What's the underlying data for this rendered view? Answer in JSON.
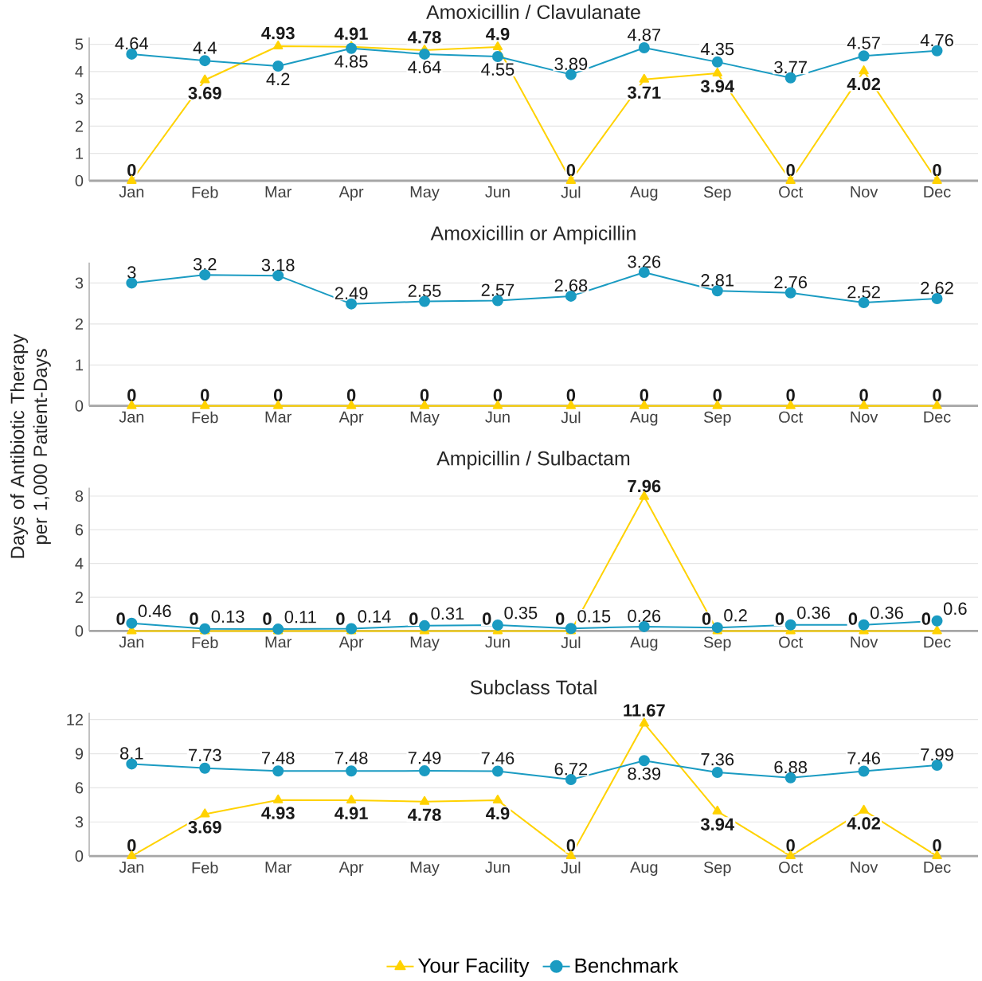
{
  "chart_data": [
    {
      "type": "line",
      "title": "Amoxicillin / Clavulanate",
      "categories": [
        "Jan",
        "Feb",
        "Mar",
        "Apr",
        "May",
        "Jun",
        "Jul",
        "Aug",
        "Sep",
        "Oct",
        "Nov",
        "Dec"
      ],
      "series": [
        {
          "color": "#ffd200",
          "marker": "triangle",
          "values": [
            0,
            3.69,
            4.93,
            4.91,
            4.78,
            4.9,
            0,
            3.71,
            3.94,
            0,
            4.02,
            0
          ]
        },
        {
          "color": "#1a9bc2",
          "marker": "circle",
          "values": [
            4.64,
            4.4,
            4.2,
            4.85,
            4.64,
            4.55,
            3.89,
            4.87,
            4.35,
            3.77,
            4.57,
            4.76
          ]
        }
      ],
      "ylim": [
        0,
        5.25
      ],
      "yticks": [
        0,
        1,
        2,
        3,
        4,
        5
      ],
      "grid": "y",
      "data_labels": true
    },
    {
      "type": "line",
      "title": "Amoxicillin or Ampicillin",
      "ylabel": "Days of Antibiotic Therapy per 1,000 Patient-Days",
      "categories": [
        "Jan",
        "Feb",
        "Mar",
        "Apr",
        "May",
        "Jun",
        "Jul",
        "Aug",
        "Sep",
        "Oct",
        "Nov",
        "Dec"
      ],
      "series": [
        {
          "color": "#ffd200",
          "marker": "triangle",
          "values": [
            0,
            0,
            0,
            0,
            0,
            0,
            0,
            0,
            0,
            0,
            0,
            0
          ]
        },
        {
          "color": "#1a9bc2",
          "marker": "circle",
          "values": [
            3,
            3.2,
            3.18,
            2.49,
            2.55,
            2.57,
            2.68,
            3.26,
            2.81,
            2.76,
            2.52,
            2.62
          ]
        }
      ],
      "ylim": [
        0,
        3.5
      ],
      "yticks": [
        0,
        1,
        2,
        3
      ],
      "grid": "y",
      "data_labels": true
    },
    {
      "type": "line",
      "title": "Ampicillin / Sulbactam",
      "categories": [
        "Jan",
        "Feb",
        "Mar",
        "Apr",
        "May",
        "Jun",
        "Jul",
        "Aug",
        "Sep",
        "Oct",
        "Nov",
        "Dec"
      ],
      "series": [
        {
          "color": "#ffd200",
          "marker": "triangle",
          "values": [
            0,
            0,
            0,
            0,
            0,
            0,
            0,
            7.96,
            0,
            0,
            0,
            0
          ]
        },
        {
          "color": "#1a9bc2",
          "marker": "circle",
          "values": [
            0.46,
            0.13,
            0.11,
            0.14,
            0.31,
            0.35,
            0.15,
            0.26,
            0.2,
            0.36,
            0.36,
            0.6
          ]
        }
      ],
      "ylim": [
        0,
        8.5
      ],
      "yticks": [
        0,
        2,
        4,
        6,
        8
      ],
      "grid": "y",
      "data_labels": true
    },
    {
      "type": "line",
      "title": "Subclass Total",
      "categories": [
        "Jan",
        "Feb",
        "Mar",
        "Apr",
        "May",
        "Jun",
        "Jul",
        "Aug",
        "Sep",
        "Oct",
        "Nov",
        "Dec"
      ],
      "series": [
        {
          "name": "Your Facility",
          "color": "#ffd200",
          "marker": "triangle",
          "values": [
            0,
            3.69,
            4.93,
            4.91,
            4.78,
            4.9,
            0,
            11.67,
            3.94,
            0,
            4.02,
            0
          ]
        },
        {
          "name": "Benchmark",
          "color": "#1a9bc2",
          "marker": "circle",
          "values": [
            8.1,
            7.73,
            7.48,
            7.48,
            7.49,
            7.46,
            6.72,
            8.39,
            7.36,
            6.88,
            7.46,
            7.99
          ]
        }
      ],
      "ylim": [
        0,
        12.6
      ],
      "yticks": [
        0,
        3,
        6,
        9,
        12
      ],
      "grid": "y",
      "data_labels": true,
      "legend": "bottom"
    }
  ]
}
